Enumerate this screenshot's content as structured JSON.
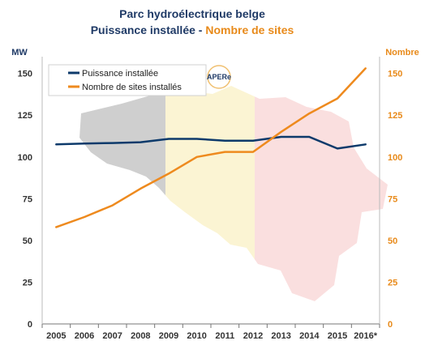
{
  "chart_data": {
    "type": "line",
    "title": "Parc hydroélectrique belge",
    "subtitle_part1": "Puissance installée - ",
    "subtitle_part2": "Nombre de sites",
    "left_unit": "MW",
    "right_unit": "Nombre",
    "categories": [
      "2005",
      "2006",
      "2007",
      "2008",
      "2009",
      "2010",
      "2011",
      "2012",
      "2013",
      "2014",
      "2015",
      "2016*"
    ],
    "left_ticks": [
      "0",
      "25",
      "50",
      "75",
      "100",
      "125",
      "150"
    ],
    "right_ticks": [
      "0",
      "25",
      "50",
      "75",
      "100",
      "125",
      "150"
    ],
    "ylim_left": [
      0,
      160
    ],
    "ylim_right": [
      0,
      160
    ],
    "series": [
      {
        "name": "Puissance installée",
        "axis": "left",
        "color": "#0d3a6b",
        "values": [
          107.5,
          108,
          108.3,
          108.8,
          110.8,
          110.8,
          109.7,
          109.7,
          112,
          112,
          105,
          107.5
        ]
      },
      {
        "name": "Nombre de sites installés",
        "axis": "right",
        "color": "#ee8a1e",
        "values": [
          58,
          64,
          71,
          81,
          90,
          100,
          103,
          103,
          115,
          126,
          135,
          153
        ]
      }
    ],
    "legend_position": "top-left",
    "grid": false,
    "background_logo_text": "APERe"
  }
}
